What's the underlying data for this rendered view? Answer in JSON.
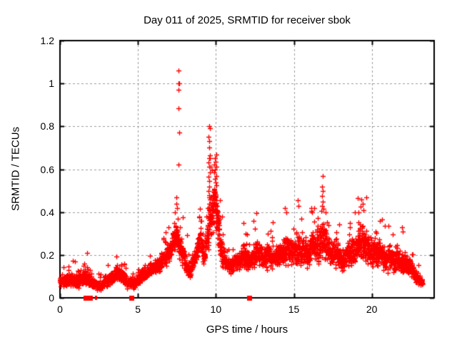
{
  "chart_data": {
    "type": "scatter",
    "title": "Day 011 of 2025, SRMTID for receiver sbok",
    "xlabel": "GPS time / hours",
    "ylabel": "SRMTID / TECUs",
    "series_name": "SRMTID",
    "xlim": [
      0,
      24
    ],
    "ylim": [
      0,
      1.2
    ],
    "x_ticks": [
      0,
      5,
      10,
      15,
      20
    ],
    "x_tick_labels": [
      "0",
      "5",
      "10",
      "15",
      "20"
    ],
    "y_ticks": [
      0,
      0.2,
      0.4,
      0.6,
      0.8,
      1.0,
      1.2
    ],
    "y_tick_labels": [
      "0",
      "0.2",
      "0.4",
      "0.6",
      "0.8",
      "1",
      "1.2"
    ],
    "grid": "dashed",
    "legend": "none",
    "marker": {
      "shape": "plus",
      "size": 7,
      "color": "#ff0000"
    },
    "colors": {
      "background": "#ffffff",
      "axis": "#000000",
      "grid": "#9b9b9b",
      "marker": "#ff0000"
    },
    "samples_per_hour": 160,
    "t_end": 23.25,
    "seed": 11,
    "band_profile": [
      [
        0.0,
        0.04,
        0.12
      ],
      [
        0.6,
        0.04,
        0.13
      ],
      [
        1.2,
        0.03,
        0.12
      ],
      [
        1.7,
        0.05,
        0.15
      ],
      [
        2.1,
        0.03,
        0.1
      ],
      [
        2.5,
        0.02,
        0.09
      ],
      [
        3.0,
        0.04,
        0.12
      ],
      [
        3.6,
        0.07,
        0.16
      ],
      [
        3.9,
        0.06,
        0.15
      ],
      [
        4.3,
        0.04,
        0.12
      ],
      [
        4.7,
        0.03,
        0.1
      ],
      [
        5.1,
        0.05,
        0.13
      ],
      [
        5.6,
        0.08,
        0.16
      ],
      [
        6.1,
        0.1,
        0.19
      ],
      [
        6.6,
        0.12,
        0.24
      ],
      [
        7.0,
        0.14,
        0.28
      ],
      [
        7.4,
        0.17,
        0.38
      ],
      [
        7.7,
        0.15,
        0.33
      ],
      [
        8.0,
        0.1,
        0.24
      ],
      [
        8.35,
        0.06,
        0.16
      ],
      [
        8.7,
        0.13,
        0.28
      ],
      [
        9.0,
        0.18,
        0.35
      ],
      [
        9.3,
        0.1,
        0.26
      ],
      [
        9.6,
        0.22,
        0.58
      ],
      [
        10.0,
        0.25,
        0.6
      ],
      [
        10.3,
        0.14,
        0.33
      ],
      [
        10.6,
        0.11,
        0.24
      ],
      [
        10.9,
        0.08,
        0.19
      ],
      [
        11.3,
        0.1,
        0.22
      ],
      [
        11.7,
        0.11,
        0.27
      ],
      [
        12.1,
        0.1,
        0.24
      ],
      [
        12.5,
        0.12,
        0.3
      ],
      [
        12.9,
        0.1,
        0.27
      ],
      [
        13.3,
        0.12,
        0.29
      ],
      [
        13.7,
        0.11,
        0.25
      ],
      [
        14.1,
        0.12,
        0.29
      ],
      [
        14.5,
        0.13,
        0.33
      ],
      [
        14.9,
        0.12,
        0.29
      ],
      [
        15.3,
        0.13,
        0.34
      ],
      [
        15.7,
        0.12,
        0.31
      ],
      [
        16.1,
        0.14,
        0.34
      ],
      [
        16.5,
        0.14,
        0.36
      ],
      [
        16.9,
        0.15,
        0.4
      ],
      [
        17.3,
        0.12,
        0.29
      ],
      [
        17.7,
        0.11,
        0.27
      ],
      [
        18.1,
        0.1,
        0.27
      ],
      [
        18.5,
        0.12,
        0.29
      ],
      [
        18.9,
        0.13,
        0.31
      ],
      [
        19.3,
        0.14,
        0.38
      ],
      [
        19.7,
        0.13,
        0.35
      ],
      [
        20.1,
        0.11,
        0.29
      ],
      [
        20.5,
        0.12,
        0.31
      ],
      [
        20.9,
        0.1,
        0.27
      ],
      [
        21.3,
        0.1,
        0.24
      ],
      [
        21.7,
        0.1,
        0.26
      ],
      [
        22.1,
        0.09,
        0.23
      ],
      [
        22.5,
        0.09,
        0.2
      ],
      [
        22.8,
        0.05,
        0.14
      ],
      [
        23.1,
        0.03,
        0.11
      ],
      [
        23.25,
        0.04,
        0.1
      ]
    ],
    "extra_points": [
      [
        7.62,
        1.06
      ],
      [
        7.59,
        1.0
      ],
      [
        7.63,
        1.0
      ],
      [
        7.61,
        0.97
      ],
      [
        7.62,
        0.885
      ],
      [
        7.64,
        0.77
      ],
      [
        7.6,
        0.62
      ],
      [
        7.45,
        0.44
      ],
      [
        7.52,
        0.42
      ],
      [
        7.38,
        0.4
      ],
      [
        7.57,
        0.37
      ],
      [
        7.33,
        0.35
      ],
      [
        7.68,
        0.33
      ],
      [
        7.48,
        0.47
      ],
      [
        9.57,
        0.8
      ],
      [
        9.6,
        0.79
      ],
      [
        9.54,
        0.75
      ],
      [
        9.58,
        0.73
      ],
      [
        9.56,
        0.7
      ],
      [
        9.6,
        0.665
      ],
      [
        9.57,
        0.65
      ],
      [
        9.62,
        0.65
      ],
      [
        9.54,
        0.63
      ],
      [
        9.57,
        0.61
      ],
      [
        9.6,
        0.585
      ],
      [
        9.52,
        0.565
      ],
      [
        9.56,
        0.545
      ],
      [
        9.59,
        0.52
      ],
      [
        9.53,
        0.5
      ],
      [
        9.57,
        0.48
      ],
      [
        9.61,
        0.46
      ],
      [
        9.55,
        0.44
      ],
      [
        9.5,
        0.42
      ],
      [
        9.93,
        0.65
      ],
      [
        9.99,
        0.635
      ],
      [
        9.91,
        0.62
      ],
      [
        10.02,
        0.61
      ],
      [
        9.96,
        0.6
      ],
      [
        9.89,
        0.585
      ],
      [
        10.05,
        0.57
      ],
      [
        9.93,
        0.555
      ],
      [
        9.99,
        0.54
      ],
      [
        10.03,
        0.525
      ],
      [
        9.91,
        0.51
      ],
      [
        9.96,
        0.49
      ],
      [
        10.0,
        0.47
      ],
      [
        10.04,
        0.455
      ],
      [
        9.94,
        0.44
      ],
      [
        9.98,
        0.425
      ],
      [
        10.07,
        0.41
      ],
      [
        9.87,
        0.43
      ],
      [
        16.84,
        0.57
      ],
      [
        16.82,
        0.52
      ],
      [
        16.86,
        0.5
      ],
      [
        16.83,
        0.475
      ],
      [
        16.86,
        0.45
      ],
      [
        16.81,
        0.43
      ],
      [
        16.88,
        0.415
      ],
      [
        15.25,
        0.455
      ],
      [
        15.28,
        0.43
      ],
      [
        19.33,
        0.46
      ],
      [
        19.4,
        0.44
      ],
      [
        19.28,
        0.425
      ],
      [
        19.45,
        0.41
      ],
      [
        11.78,
        0.35
      ],
      [
        12.42,
        0.36
      ],
      [
        14.45,
        0.42
      ],
      [
        14.52,
        0.4
      ],
      [
        16.1,
        0.42
      ],
      [
        16.16,
        0.4
      ],
      [
        17.02,
        0.4
      ],
      [
        18.92,
        0.4
      ],
      [
        20.52,
        0.36
      ],
      [
        21.92,
        0.33
      ],
      [
        8.95,
        0.38
      ],
      [
        9.02,
        0.36
      ],
      [
        6.95,
        0.33
      ],
      [
        22.0,
        0.31
      ]
    ],
    "zero_markers": [
      {
        "t": 1.68,
        "w": 7,
        "h": 7
      },
      {
        "t": 1.8,
        "w": 7,
        "h": 7
      },
      {
        "t": 1.93,
        "w": 7,
        "h": 7
      },
      {
        "t": 2.27,
        "w": 2,
        "h": 6
      },
      {
        "t": 2.35,
        "w": 2,
        "h": 6
      },
      {
        "t": 4.62,
        "w": 7,
        "h": 7
      },
      {
        "t": 12.15,
        "w": 7,
        "h": 7
      }
    ]
  }
}
